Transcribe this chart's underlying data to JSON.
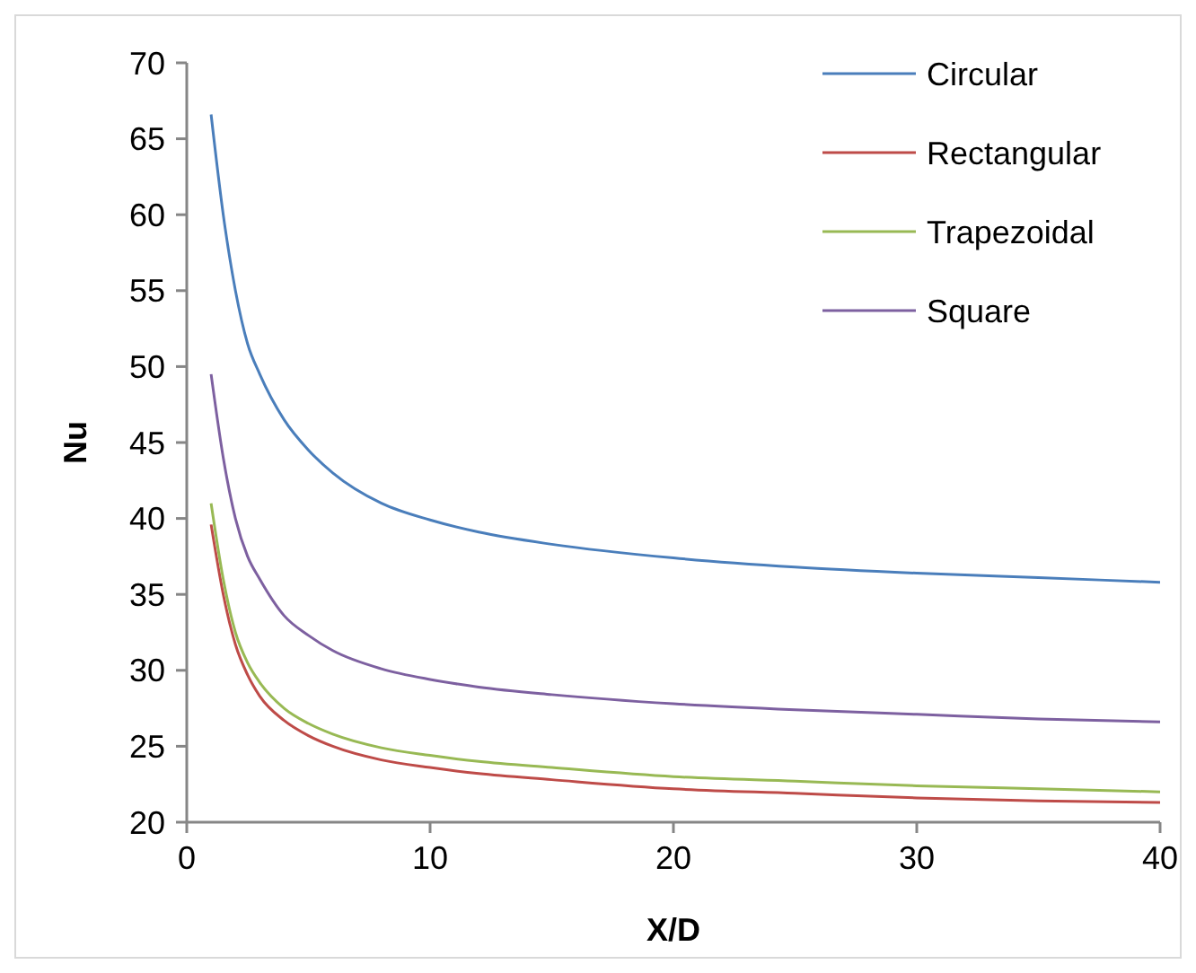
{
  "chart_data": {
    "type": "line",
    "xlabel": "X/D",
    "ylabel": "Nu",
    "xlim": [
      0,
      40
    ],
    "xticks": [
      0,
      10,
      20,
      30,
      40
    ],
    "ylim": [
      20,
      70
    ],
    "yticks": [
      20,
      25,
      30,
      35,
      40,
      45,
      50,
      55,
      60,
      65,
      70
    ],
    "grid": false,
    "legend": "top right",
    "x": [
      1,
      1.5,
      2,
      2.5,
      3,
      4,
      5,
      6,
      8,
      10,
      12,
      15,
      20,
      25,
      30,
      35,
      40
    ],
    "series": [
      {
        "name": "Circular",
        "color": "#4a7ebb",
        "values": [
          66.6,
          60,
          55,
          51.5,
          49.5,
          46.5,
          44.5,
          43,
          41,
          39.9,
          39.1,
          38.3,
          37.4,
          36.8,
          36.4,
          36.1,
          35.8
        ]
      },
      {
        "name": "Rectangular",
        "color": "#be4b48",
        "values": [
          39.6,
          35,
          31.7,
          29.7,
          28.3,
          26.7,
          25.7,
          25,
          24.1,
          23.6,
          23.2,
          22.8,
          22.2,
          21.9,
          21.6,
          21.4,
          21.3
        ]
      },
      {
        "name": "Trapezoidal",
        "color": "#98b954",
        "values": [
          41,
          36,
          32.5,
          30.5,
          29.2,
          27.5,
          26.5,
          25.8,
          24.9,
          24.4,
          24,
          23.6,
          23,
          22.7,
          22.4,
          22.2,
          22
        ]
      },
      {
        "name": "Square",
        "color": "#7d60a0",
        "values": [
          49.5,
          44,
          40,
          37.5,
          36,
          33.6,
          32.3,
          31.3,
          30.1,
          29.4,
          28.9,
          28.4,
          27.8,
          27.4,
          27.1,
          26.8,
          26.6
        ]
      }
    ]
  }
}
